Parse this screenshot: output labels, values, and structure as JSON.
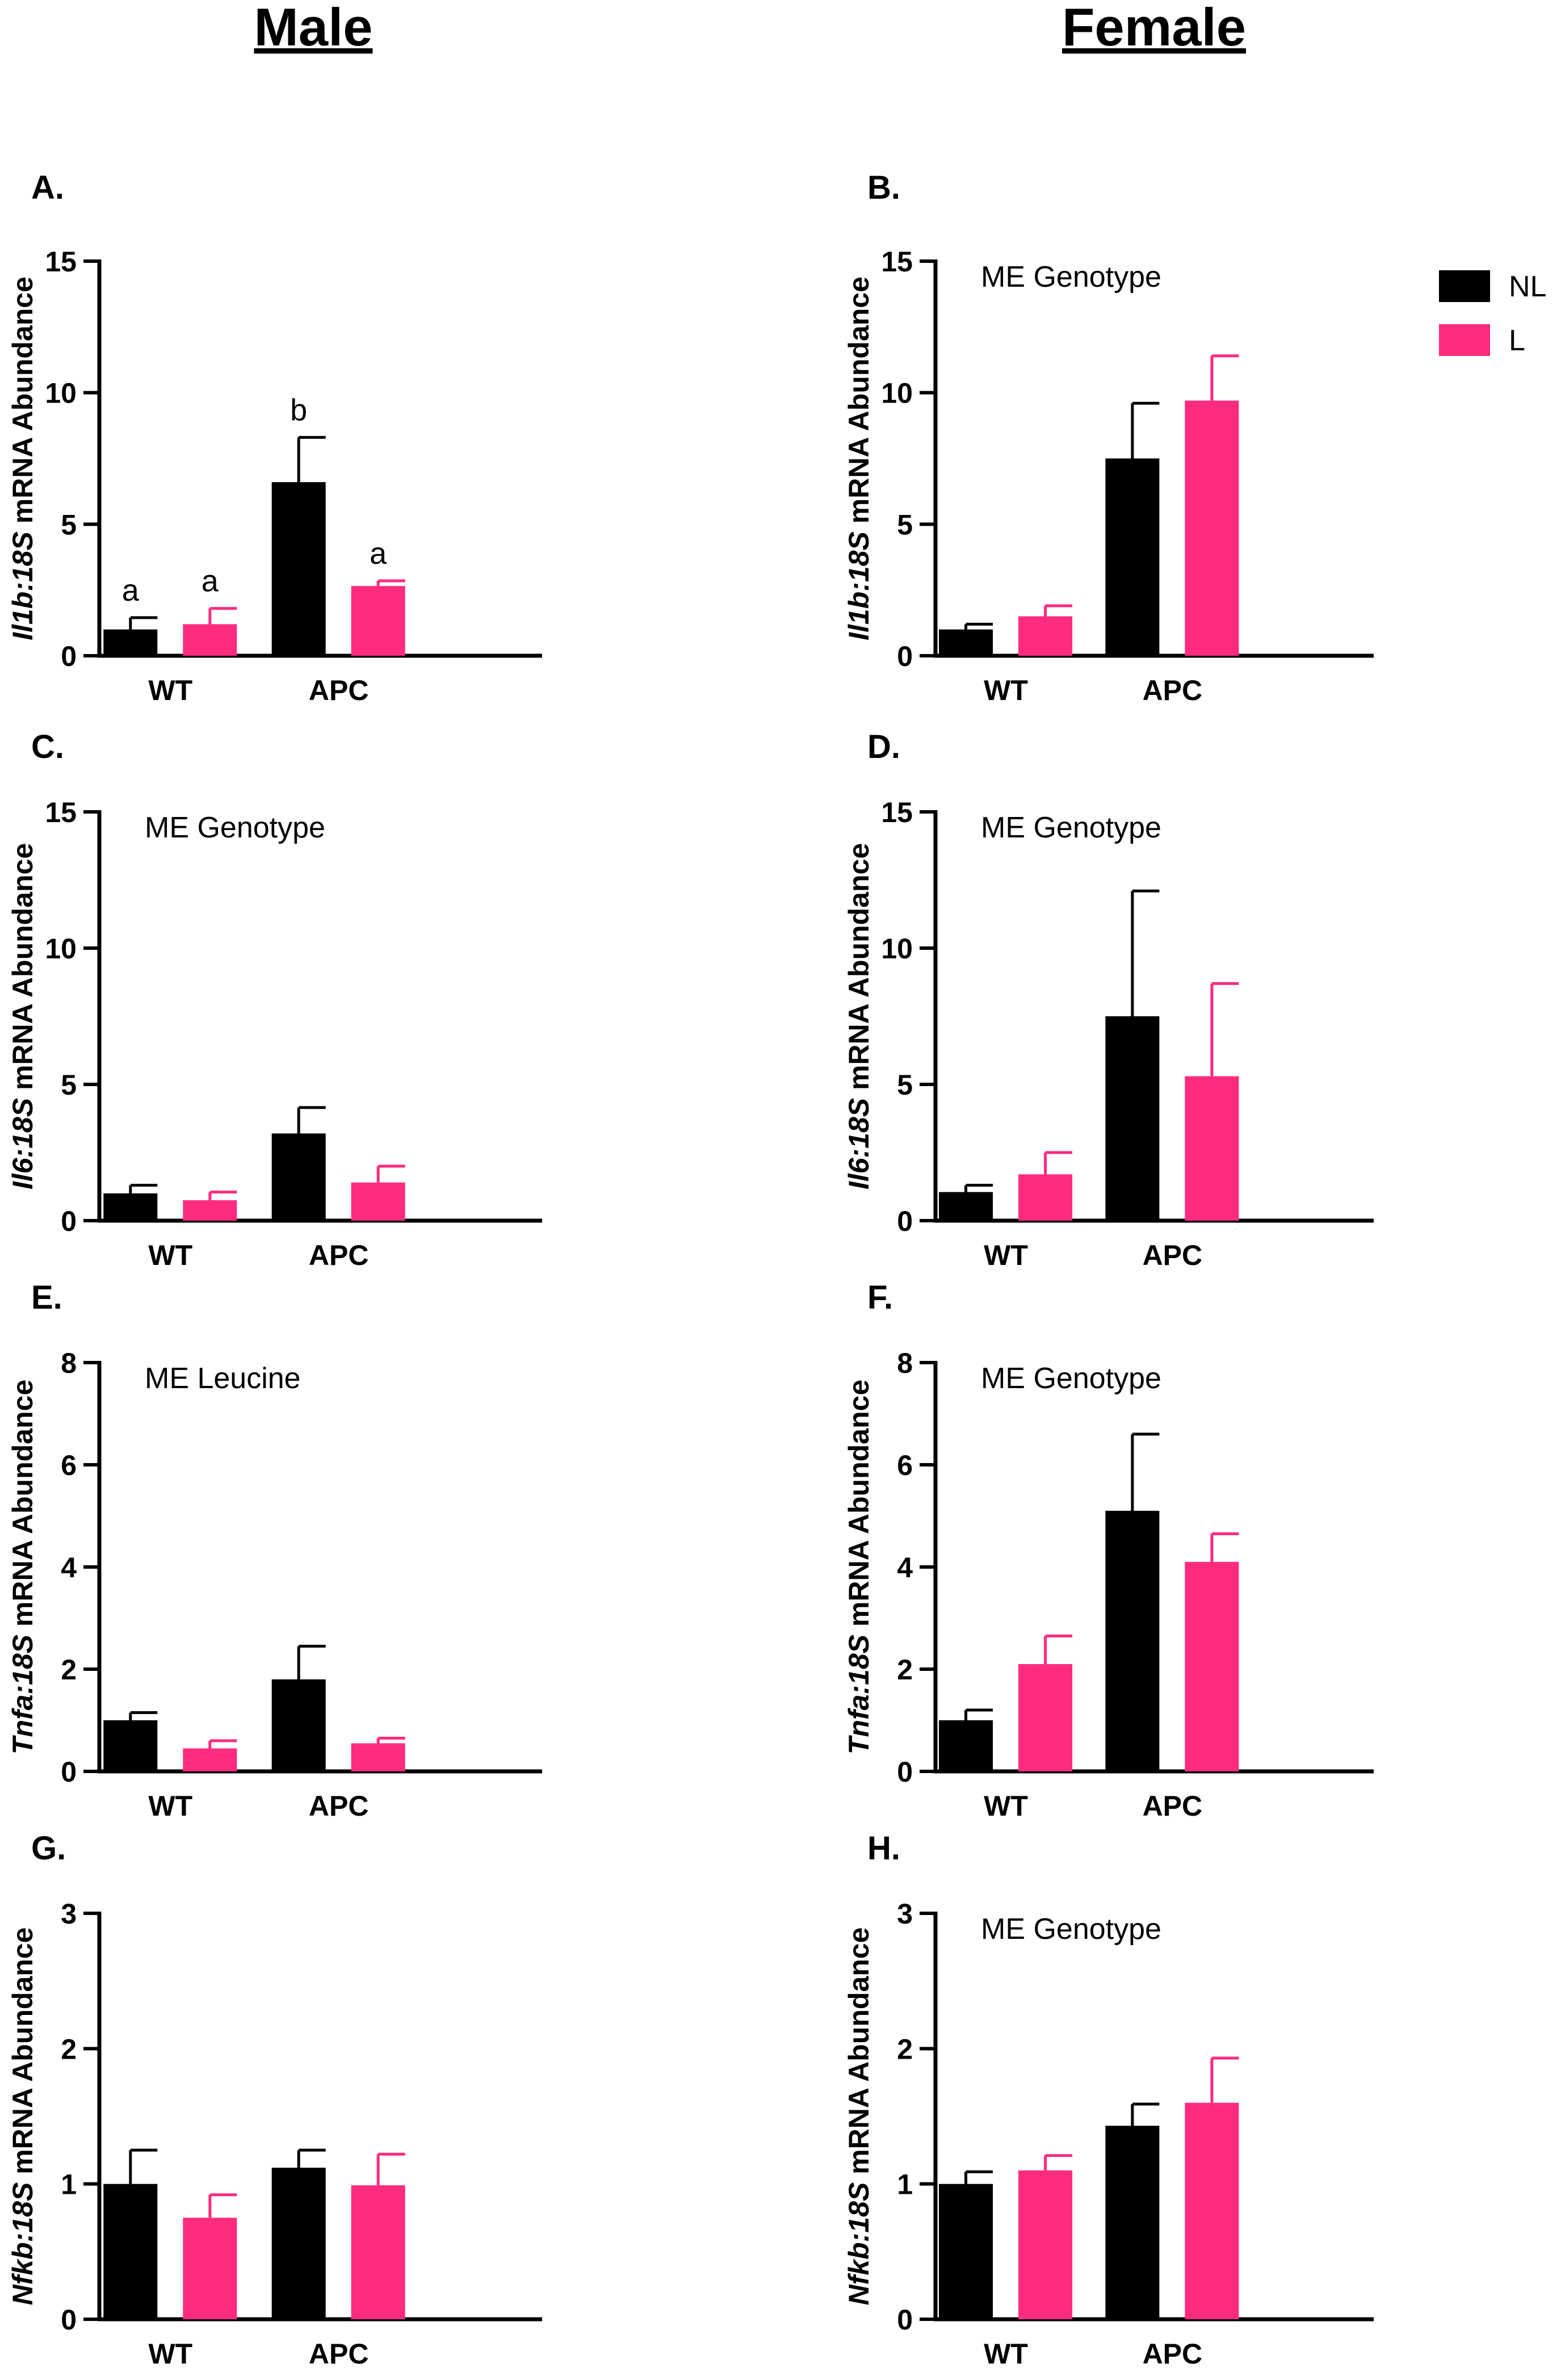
{
  "headers": {
    "male": "Male",
    "female": "Female"
  },
  "legend": {
    "items": [
      {
        "label": "NL",
        "color": "#000000"
      },
      {
        "label": "L",
        "color": "#ff2b7f"
      }
    ]
  },
  "colors": {
    "NL": "#000000",
    "L": "#ff2b7f",
    "axis": "#000000"
  },
  "chart_data": [
    {
      "panel": "A.",
      "type": "bar",
      "gene": "Il1b",
      "ylabel_rest": " mRNA Abundance",
      "categories": [
        "WT",
        "APC"
      ],
      "ylim": [
        0,
        15
      ],
      "yticks": [
        0,
        5,
        10,
        15
      ],
      "annotation": "",
      "series": [
        {
          "name": "NL",
          "values": [
            1.0,
            6.6
          ],
          "errors": [
            0.45,
            1.7
          ],
          "letters": [
            "a",
            "b"
          ]
        },
        {
          "name": "L",
          "values": [
            1.2,
            2.65
          ],
          "errors": [
            0.6,
            0.2
          ],
          "letters": [
            "a",
            "a"
          ]
        }
      ]
    },
    {
      "panel": "B.",
      "type": "bar",
      "gene": "Il1b",
      "ylabel_rest": " mRNA Abundance",
      "categories": [
        "WT",
        "APC"
      ],
      "ylim": [
        0,
        15
      ],
      "yticks": [
        0,
        5,
        10,
        15
      ],
      "annotation": "ME Genotype",
      "series": [
        {
          "name": "NL",
          "values": [
            1.0,
            7.5
          ],
          "errors": [
            0.2,
            2.1
          ]
        },
        {
          "name": "L",
          "values": [
            1.5,
            9.7
          ],
          "errors": [
            0.4,
            1.7
          ]
        }
      ]
    },
    {
      "panel": "C.",
      "type": "bar",
      "gene": "Il6",
      "ylabel_rest": " mRNA Abundance",
      "categories": [
        "WT",
        "APC"
      ],
      "ylim": [
        0,
        15
      ],
      "yticks": [
        0,
        5,
        10,
        15
      ],
      "annotation": "ME Genotype",
      "series": [
        {
          "name": "NL",
          "values": [
            1.0,
            3.2
          ],
          "errors": [
            0.3,
            0.95
          ]
        },
        {
          "name": "L",
          "values": [
            0.75,
            1.4
          ],
          "errors": [
            0.3,
            0.6
          ]
        }
      ]
    },
    {
      "panel": "D.",
      "type": "bar",
      "gene": "Il6",
      "ylabel_rest": " mRNA Abundance",
      "categories": [
        "WT",
        "APC"
      ],
      "ylim": [
        0,
        15
      ],
      "yticks": [
        0,
        5,
        10,
        15
      ],
      "annotation": "ME Genotype",
      "series": [
        {
          "name": "NL",
          "values": [
            1.05,
            7.5
          ],
          "errors": [
            0.25,
            4.6
          ]
        },
        {
          "name": "L",
          "values": [
            1.7,
            5.3
          ],
          "errors": [
            0.8,
            3.4
          ]
        }
      ]
    },
    {
      "panel": "E.",
      "type": "bar",
      "gene": "Tnfa",
      "ylabel_rest": " mRNA Abundance",
      "categories": [
        "WT",
        "APC"
      ],
      "ylim": [
        0,
        8
      ],
      "yticks": [
        0,
        2,
        4,
        6,
        8
      ],
      "annotation": "ME Leucine",
      "series": [
        {
          "name": "NL",
          "values": [
            1.0,
            1.8
          ],
          "errors": [
            0.15,
            0.65
          ]
        },
        {
          "name": "L",
          "values": [
            0.45,
            0.55
          ],
          "errors": [
            0.15,
            0.1
          ]
        }
      ]
    },
    {
      "panel": "F.",
      "type": "bar",
      "gene": "Tnfa",
      "ylabel_rest": " mRNA Abundance",
      "categories": [
        "WT",
        "APC"
      ],
      "ylim": [
        0,
        8
      ],
      "yticks": [
        0,
        2,
        4,
        6,
        8
      ],
      "annotation": "ME Genotype",
      "series": [
        {
          "name": "NL",
          "values": [
            1.0,
            5.1
          ],
          "errors": [
            0.2,
            1.5
          ]
        },
        {
          "name": "L",
          "values": [
            2.1,
            4.1
          ],
          "errors": [
            0.55,
            0.55
          ]
        }
      ]
    },
    {
      "panel": "G.",
      "type": "bar",
      "gene": "Nfkb",
      "ylabel_rest": " mRNA  Abundance",
      "categories": [
        "WT",
        "APC"
      ],
      "ylim": [
        0,
        3
      ],
      "yticks": [
        0,
        1,
        2,
        3
      ],
      "annotation": "",
      "series": [
        {
          "name": "NL",
          "values": [
            1.0,
            1.12
          ],
          "errors": [
            0.25,
            0.13
          ]
        },
        {
          "name": "L",
          "values": [
            0.75,
            0.99
          ],
          "errors": [
            0.17,
            0.23
          ]
        }
      ]
    },
    {
      "panel": "H.",
      "type": "bar",
      "gene": "Nfkb",
      "ylabel_rest": " mRNA  Abundance",
      "categories": [
        "WT",
        "APC"
      ],
      "ylim": [
        0,
        3
      ],
      "yticks": [
        0,
        1,
        2,
        3
      ],
      "annotation": "ME Genotype",
      "series": [
        {
          "name": "NL",
          "values": [
            1.0,
            1.43
          ],
          "errors": [
            0.09,
            0.16
          ]
        },
        {
          "name": "L",
          "values": [
            1.1,
            1.6
          ],
          "errors": [
            0.11,
            0.33
          ]
        }
      ]
    }
  ]
}
